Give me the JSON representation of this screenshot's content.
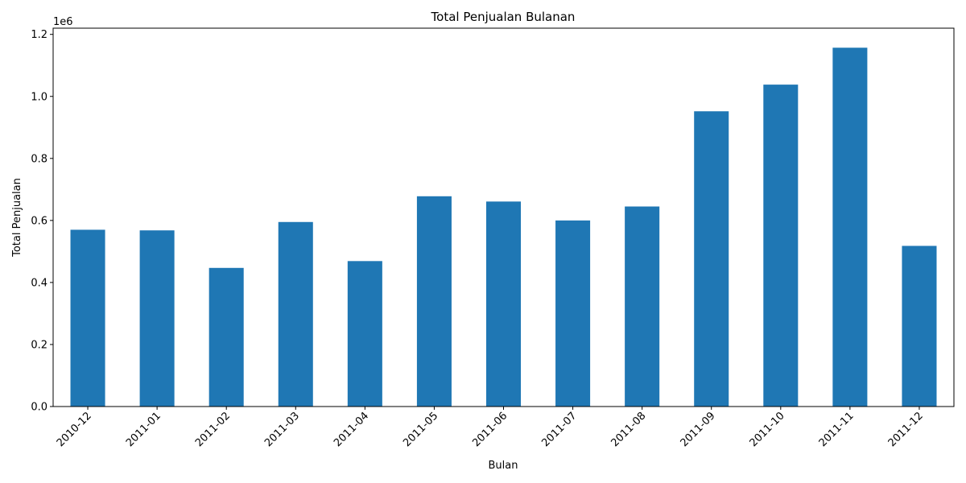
{
  "chart_data": {
    "type": "bar",
    "title": "Total Penjualan Bulanan",
    "xlabel": "Bulan",
    "ylabel": "Total Penjualan",
    "y_multiplier_label": "1e6",
    "categories": [
      "2010-12",
      "2011-01",
      "2011-02",
      "2011-03",
      "2011-04",
      "2011-05",
      "2011-06",
      "2011-07",
      "2011-08",
      "2011-09",
      "2011-10",
      "2011-11",
      "2011-12"
    ],
    "values": [
      570000,
      568000,
      447000,
      595000,
      469000,
      678000,
      661000,
      600000,
      645000,
      952000,
      1038000,
      1157000,
      518000
    ],
    "ylim": [
      0,
      1220000
    ],
    "yticks": [
      0,
      200000,
      400000,
      600000,
      800000,
      1000000,
      1200000
    ],
    "ytick_labels": [
      "0.0",
      "0.2",
      "0.4",
      "0.6",
      "0.8",
      "1.0",
      "1.2"
    ],
    "bar_color": "#1f77b4",
    "grid": false
  }
}
